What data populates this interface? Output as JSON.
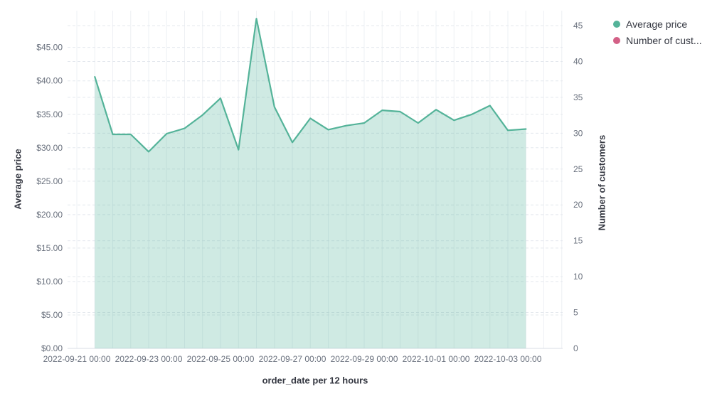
{
  "legend": {
    "items": [
      {
        "label": "Average price",
        "color": "#54B399"
      },
      {
        "label": "Number of cust...",
        "color": "#D36086"
      }
    ]
  },
  "chart_data": {
    "type": "area",
    "title": "",
    "xlabel": "order_date per 12 hours",
    "ylabel_left": "Average price",
    "ylabel_right": "Number of customers",
    "x": [
      "2022-09-21 12:00",
      "2022-09-22 00:00",
      "2022-09-22 12:00",
      "2022-09-23 00:00",
      "2022-09-23 12:00",
      "2022-09-24 00:00",
      "2022-09-24 12:00",
      "2022-09-25 00:00",
      "2022-09-25 12:00",
      "2022-09-26 00:00",
      "2022-09-26 12:00",
      "2022-09-27 00:00",
      "2022-09-27 12:00",
      "2022-09-28 00:00",
      "2022-09-28 12:00",
      "2022-09-29 00:00",
      "2022-09-29 12:00",
      "2022-09-30 00:00",
      "2022-09-30 12:00",
      "2022-10-01 00:00",
      "2022-10-01 12:00",
      "2022-10-02 00:00",
      "2022-10-02 12:00",
      "2022-10-03 00:00",
      "2022-10-03 12:00"
    ],
    "series": [
      {
        "name": "Average price",
        "axis": "left",
        "color": "#54B399",
        "fill": "rgba(84,179,153,0.28)",
        "values": [
          40.6,
          32.0,
          32.0,
          29.4,
          32.1,
          32.9,
          34.9,
          37.4,
          29.7,
          49.3,
          36.1,
          30.8,
          34.4,
          32.7,
          33.3,
          33.7,
          35.6,
          35.4,
          33.7,
          35.7,
          34.1,
          35.0,
          36.3,
          32.6,
          32.8
        ]
      },
      {
        "name": "Number of customers",
        "axis": "right",
        "color": "#D36086",
        "values": []
      }
    ],
    "y_left_ticks": [
      "$0.00",
      "$5.00",
      "$10.00",
      "$15.00",
      "$20.00",
      "$25.00",
      "$30.00",
      "$35.00",
      "$40.00",
      "$45.00"
    ],
    "y_right_ticks": [
      "0",
      "5",
      "10",
      "15",
      "20",
      "25",
      "30",
      "35",
      "40",
      "45"
    ],
    "x_tick_labels": [
      "2022-09-21 00:00",
      "2022-09-23 00:00",
      "2022-09-25 00:00",
      "2022-09-27 00:00",
      "2022-09-29 00:00",
      "2022-10-01 00:00",
      "2022-10-03 00:00"
    ],
    "ylim_left": [
      0,
      50
    ],
    "ylim_right": [
      0,
      47
    ],
    "grid": true,
    "legend_position": "top-right",
    "colors": {
      "grid_vertical": "#EEF0F4",
      "grid_horizontal": "#E4E8EE",
      "axis_line": "#D8DDE5",
      "tick_label": "#69707D",
      "axis_title": "#343741"
    }
  }
}
